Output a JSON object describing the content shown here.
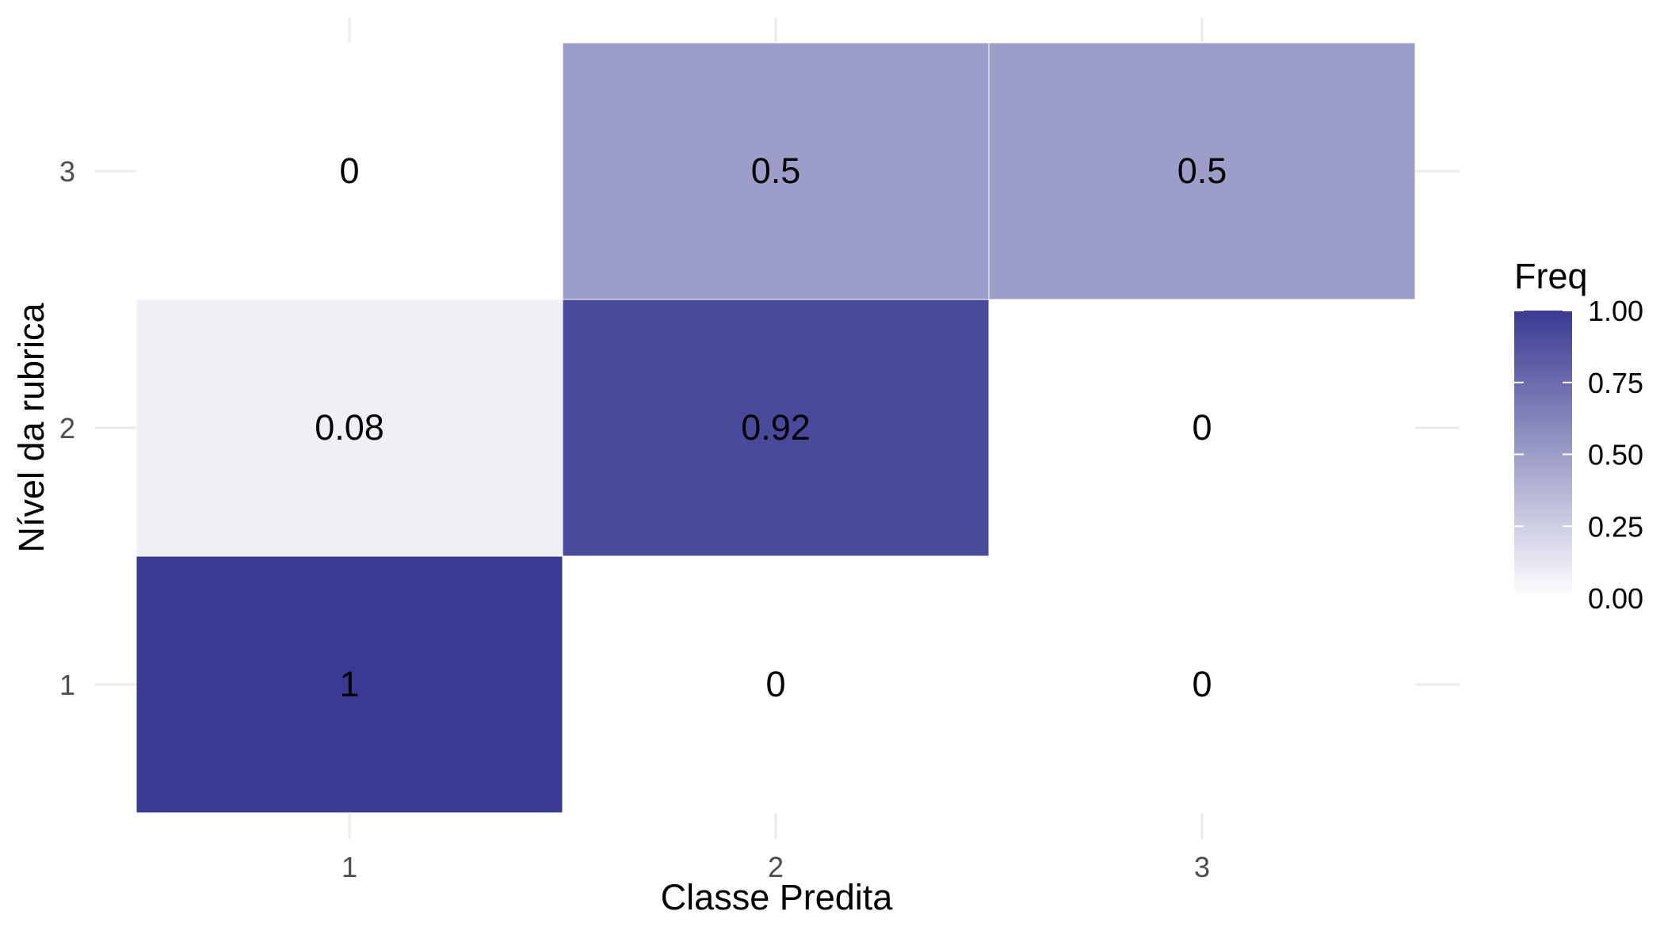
{
  "chart_data": {
    "type": "heatmap",
    "title": "",
    "xlabel": "Classe Predita",
    "ylabel": "Nível da rubrica",
    "x_categories": [
      "1",
      "2",
      "3"
    ],
    "y_categories": [
      "1",
      "2",
      "3"
    ],
    "cells": [
      {
        "x": "1",
        "y": "1",
        "value": 1,
        "label": "1"
      },
      {
        "x": "2",
        "y": "1",
        "value": 0,
        "label": "0"
      },
      {
        "x": "3",
        "y": "1",
        "value": 0,
        "label": "0"
      },
      {
        "x": "1",
        "y": "2",
        "value": 0.08,
        "label": "0.08"
      },
      {
        "x": "2",
        "y": "2",
        "value": 0.92,
        "label": "0.92"
      },
      {
        "x": "3",
        "y": "2",
        "value": 0,
        "label": "0"
      },
      {
        "x": "1",
        "y": "3",
        "value": 0,
        "label": "0"
      },
      {
        "x": "2",
        "y": "3",
        "value": 0.5,
        "label": "0.5"
      },
      {
        "x": "3",
        "y": "3",
        "value": 0.5,
        "label": "0.5"
      }
    ],
    "legend": {
      "title": "Freq",
      "ticks": [
        "0.00",
        "0.25",
        "0.50",
        "0.75",
        "1.00"
      ],
      "tick_values": [
        0,
        0.25,
        0.5,
        0.75,
        1
      ],
      "position": "right"
    },
    "color_scale": {
      "low": "#ffffff",
      "high": "#3a3a93",
      "range": [
        0,
        1
      ]
    },
    "grid": true
  }
}
